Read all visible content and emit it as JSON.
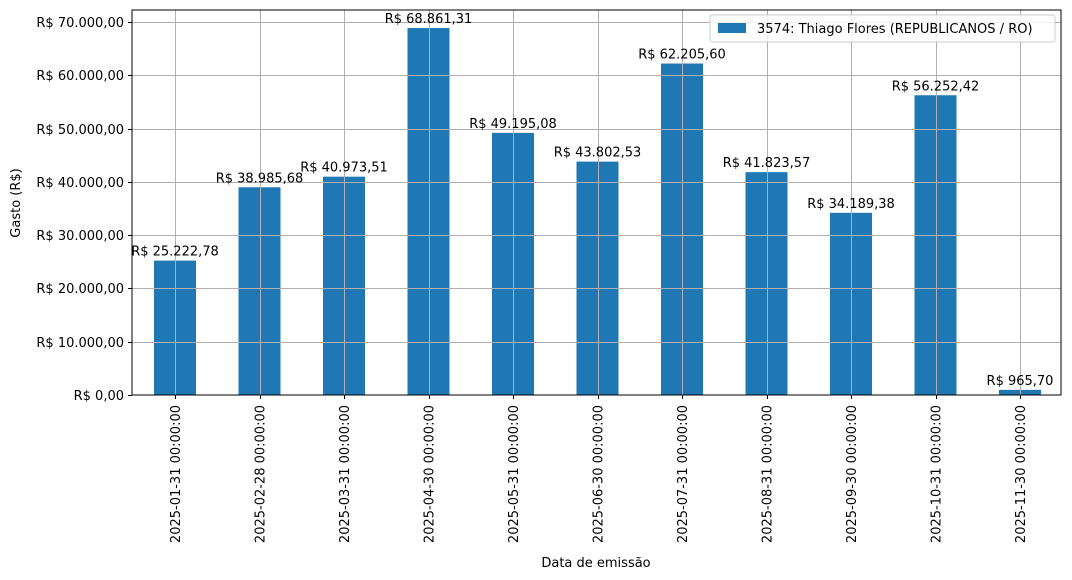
{
  "chart_data": {
    "type": "bar",
    "title": "",
    "xlabel": "Data de emissão",
    "ylabel": "Gasto (R$)",
    "ylim": [
      0,
      72000
    ],
    "grid": true,
    "legend_position": "upper right",
    "categories": [
      "2025-01-31 00:00:00",
      "2025-02-28 00:00:00",
      "2025-03-31 00:00:00",
      "2025-04-30 00:00:00",
      "2025-05-31 00:00:00",
      "2025-06-30 00:00:00",
      "2025-07-31 00:00:00",
      "2025-08-31 00:00:00",
      "2025-09-30 00:00:00",
      "2025-10-31 00:00:00",
      "2025-11-30 00:00:00"
    ],
    "series": [
      {
        "name": "3574: Thiago Flores (REPUBLICANOS / RO)",
        "color": "#1f77b4",
        "values": [
          25222.78,
          38985.68,
          40973.51,
          68861.31,
          49195.08,
          43802.53,
          62205.6,
          41823.57,
          34189.38,
          56252.42,
          965.7
        ],
        "labels": [
          "R$ 25.222,78",
          "R$ 38.985,68",
          "R$ 40.973,51",
          "R$ 68.861,31",
          "R$ 49.195,08",
          "R$ 43.802,53",
          "R$ 62.205,60",
          "R$ 41.823,57",
          "R$ 34.189,38",
          "R$ 56.252,42",
          "R$ 965,70"
        ]
      }
    ],
    "yticks": [
      0,
      10000,
      20000,
      30000,
      40000,
      50000,
      60000,
      70000
    ],
    "ytick_labels": [
      "R$ 0,00",
      "R$ 10.000,00",
      "R$ 20.000,00",
      "R$ 30.000,00",
      "R$ 40.000,00",
      "R$ 50.000,00",
      "R$ 60.000,00",
      "R$ 70.000,00"
    ]
  }
}
